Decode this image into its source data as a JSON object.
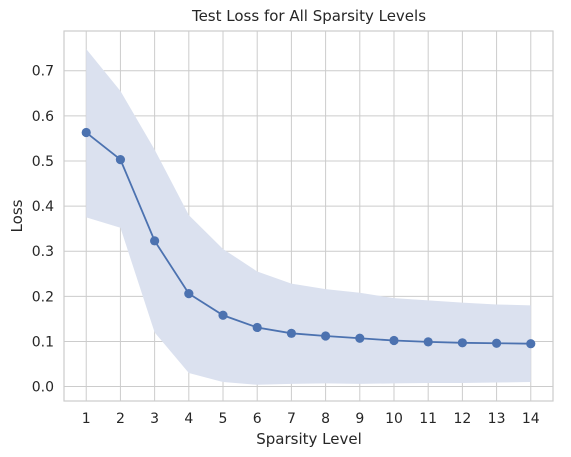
{
  "chart_data": {
    "type": "line",
    "title": "Test Loss for All Sparsity Levels",
    "xlabel": "Sparsity Level",
    "ylabel": "Loss",
    "x": [
      1,
      2,
      3,
      4,
      5,
      6,
      7,
      8,
      9,
      10,
      11,
      12,
      13,
      14
    ],
    "xtick_labels": [
      "1",
      "2",
      "3",
      "4",
      "5",
      "6",
      "7",
      "8",
      "9",
      "10",
      "11",
      "12",
      "13",
      "14"
    ],
    "ytick_values": [
      0.0,
      0.1,
      0.2,
      0.3,
      0.4,
      0.5,
      0.6,
      0.7
    ],
    "ytick_labels": [
      "0.0",
      "0.1",
      "0.2",
      "0.3",
      "0.4",
      "0.5",
      "0.6",
      "0.7"
    ],
    "xlim": [
      0.35,
      14.65
    ],
    "ylim": [
      -0.032,
      0.788
    ],
    "grid": true,
    "series": [
      {
        "values": [
          0.563,
          0.503,
          0.323,
          0.206,
          0.158,
          0.131,
          0.118,
          0.112,
          0.107,
          0.102,
          0.099,
          0.097,
          0.096,
          0.095
        ],
        "band_upper": [
          0.748,
          0.655,
          0.525,
          0.38,
          0.305,
          0.255,
          0.228,
          0.216,
          0.208,
          0.196,
          0.191,
          0.186,
          0.182,
          0.18
        ],
        "band_lower": [
          0.375,
          0.352,
          0.12,
          0.03,
          0.01,
          0.004,
          0.006,
          0.007,
          0.006,
          0.007,
          0.008,
          0.008,
          0.009,
          0.01
        ],
        "color": "#4c72b0",
        "band_color": "#dbe1ef"
      }
    ]
  }
}
